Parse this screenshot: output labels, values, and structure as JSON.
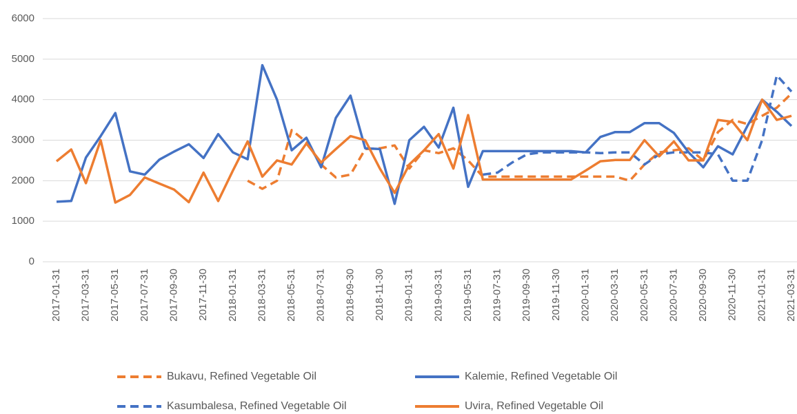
{
  "chart_data": {
    "type": "line",
    "categories": [
      "2017-01-31",
      null,
      "2017-03-31",
      null,
      "2017-05-31",
      null,
      "2017-07-31",
      null,
      "2017-09-30",
      null,
      "2017-11-30",
      null,
      "2018-01-31",
      null,
      "2018-03-31",
      null,
      "2018-05-31",
      null,
      "2018-07-31",
      null,
      "2018-09-30",
      null,
      "2018-11-30",
      null,
      "2019-01-31",
      null,
      "2019-03-31",
      null,
      "2019-05-31",
      null,
      "2019-07-31",
      null,
      "2019-09-30",
      null,
      "2019-11-30",
      null,
      "2020-01-31",
      null,
      "2020-03-31",
      null,
      "2020-05-31",
      null,
      "2020-07-31",
      null,
      "2020-09-30",
      null,
      "2020-11-30",
      null,
      "2021-01-31",
      null,
      "2021-03-31"
    ],
    "series": [
      {
        "name": "Bukavu, Refined Vegetable Oil",
        "color": "#ed7d31",
        "dashed": true,
        "values": [
          null,
          null,
          null,
          null,
          null,
          null,
          null,
          null,
          null,
          null,
          null,
          null,
          null,
          2000,
          1800,
          2000,
          3250,
          2950,
          2400,
          2080,
          2150,
          2780,
          2800,
          2870,
          2300,
          2750,
          2680,
          2800,
          2500,
          2100,
          2100,
          2100,
          2100,
          2100,
          2100,
          2100,
          2100,
          2100,
          2100,
          2000,
          2400,
          2700,
          2750,
          2800,
          2500,
          3200,
          3500,
          3400,
          3600,
          3800,
          4150
        ]
      },
      {
        "name": "Kalemie, Refined Vegetable Oil",
        "color": "#4472c4",
        "dashed": false,
        "values": [
          1480,
          1500,
          2570,
          3100,
          3670,
          2230,
          2150,
          2520,
          2720,
          2900,
          2560,
          3150,
          2700,
          2530,
          4850,
          4000,
          2750,
          3060,
          2330,
          3550,
          4100,
          2800,
          2780,
          1430,
          3000,
          3330,
          2820,
          3800,
          1850,
          2730,
          2730,
          2730,
          2730,
          2730,
          2730,
          2730,
          2700,
          3080,
          3200,
          3200,
          3420,
          3420,
          3180,
          2700,
          2330,
          2850,
          2650,
          3350,
          4000,
          3700,
          3350
        ]
      },
      {
        "name": "Kasumbalesa, Refined Vegetable Oil",
        "color": "#4472c4",
        "dashed": true,
        "values": [
          null,
          null,
          null,
          null,
          null,
          null,
          null,
          null,
          null,
          null,
          null,
          null,
          null,
          null,
          null,
          null,
          null,
          null,
          null,
          null,
          null,
          null,
          null,
          null,
          null,
          null,
          null,
          null,
          null,
          2150,
          2200,
          2450,
          2650,
          2700,
          2700,
          2700,
          2700,
          2680,
          2700,
          2700,
          2400,
          2650,
          2700,
          2700,
          2700,
          2650,
          2000,
          2000,
          3000,
          4600,
          4200
        ]
      },
      {
        "name": "Uvira, Refined Vegetable Oil",
        "color": "#ed7d31",
        "dashed": false,
        "values": [
          2480,
          2770,
          1940,
          3000,
          1460,
          1650,
          2080,
          1930,
          1780,
          1470,
          2200,
          1500,
          2250,
          2970,
          2100,
          2500,
          2400,
          2920,
          2450,
          2780,
          3100,
          3000,
          2300,
          1700,
          2400,
          2750,
          3150,
          2300,
          3620,
          2030,
          2030,
          2030,
          2030,
          2030,
          2030,
          2030,
          2250,
          2480,
          2510,
          2510,
          3000,
          2600,
          2970,
          2500,
          2500,
          3500,
          3450,
          3000,
          4000,
          3500,
          3600
        ]
      }
    ],
    "ylim": [
      0,
      6000
    ],
    "yticks": [
      0,
      1000,
      2000,
      3000,
      4000,
      5000,
      6000
    ],
    "grid": true,
    "legend": "bottom"
  }
}
